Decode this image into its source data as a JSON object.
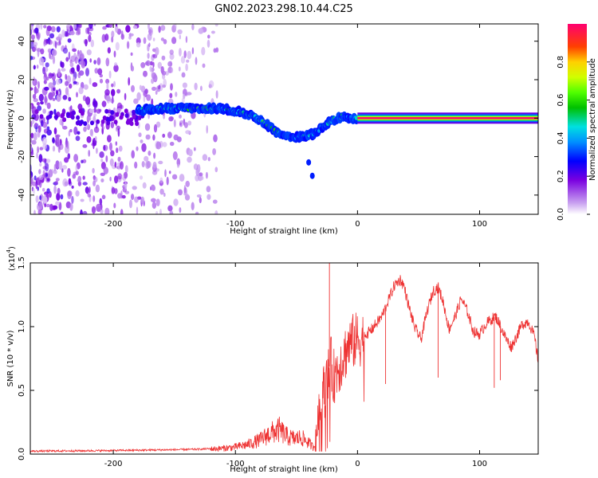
{
  "title": "GN02.2023.298.10.44.C25",
  "chart_data": [
    {
      "type": "heatmap",
      "xlabel": "Height of straight line (km)",
      "ylabel": "Frequency (Hz)",
      "xlim": [
        -268,
        148
      ],
      "ylim": [
        -50,
        49
      ],
      "xticks": [
        -200,
        -100,
        0,
        100
      ],
      "yticks": [
        -40,
        -20,
        0,
        20,
        40
      ],
      "colorbar": {
        "label": "Normalized spectral amplitude",
        "range": [
          0,
          1
        ],
        "ticks": [
          "0.0",
          "0.2",
          "0.4",
          "0.6",
          "0.8"
        ]
      },
      "ridge": {
        "x": [
          -180,
          -160,
          -140,
          -125,
          -110,
          -95,
          -85,
          -75,
          -65,
          -58,
          -50,
          -42,
          -35,
          -28,
          -20,
          -12,
          -5,
          0
        ],
        "y": [
          4,
          5,
          5,
          5,
          5,
          3,
          1,
          -3,
          -8,
          -9,
          -10,
          -9,
          -8,
          -4,
          -1,
          1,
          0,
          0
        ]
      },
      "tone": {
        "x_start": 0,
        "x_end": 148,
        "y": 0,
        "amplitude": 1.0
      },
      "noise_x_range": [
        -268,
        -115
      ],
      "grid": false,
      "legend": "none"
    },
    {
      "type": "line",
      "xlabel": "Height of straight line (km)",
      "ylabel": "SNR (10 * v/v)",
      "scale_label": "(x10",
      "scale_exponent": "4",
      "scale_close": ")",
      "xlim": [
        -268,
        148
      ],
      "ylim": [
        0,
        1.5
      ],
      "xticks": [
        -200,
        -100,
        0,
        100
      ],
      "yticks": [
        "0.0",
        "0.5",
        "1.0",
        "1.5"
      ],
      "color": "#ee3333",
      "envelope": {
        "x": [
          -268,
          -200,
          -160,
          -130,
          -110,
          -100,
          -90,
          -80,
          -72,
          -64,
          -58,
          -52,
          -46,
          -40,
          -36,
          -32,
          -30,
          -28,
          -26,
          -24,
          -22,
          -20,
          -18,
          -16,
          -14,
          -12,
          -10,
          -8,
          -5,
          0,
          5,
          10,
          15,
          20,
          25,
          30,
          35,
          38,
          42,
          47,
          52,
          57,
          62,
          66,
          70,
          75,
          80,
          85,
          90,
          95,
          100,
          105,
          110,
          113,
          116,
          119,
          122,
          126,
          130,
          135,
          140,
          145,
          148
        ],
        "y": [
          0.02,
          0.025,
          0.03,
          0.035,
          0.045,
          0.055,
          0.075,
          0.11,
          0.16,
          0.19,
          0.14,
          0.12,
          0.13,
          0.09,
          0.05,
          0.28,
          0.42,
          0.5,
          0.55,
          0.62,
          0.75,
          0.62,
          0.66,
          0.7,
          0.74,
          0.78,
          0.82,
          0.86,
          0.9,
          0.92,
          0.93,
          0.96,
          1.02,
          1.08,
          1.2,
          1.32,
          1.37,
          1.32,
          1.16,
          0.99,
          0.9,
          1.12,
          1.28,
          1.31,
          1.2,
          0.98,
          1.08,
          1.22,
          1.12,
          0.96,
          0.94,
          1.02,
          1.06,
          1.08,
          1.03,
          0.96,
          0.9,
          0.84,
          0.92,
          1.02,
          1.04,
          0.92,
          0.72
        ]
      },
      "spikes": [
        {
          "x": -23,
          "y": 1.5
        },
        {
          "x": 66,
          "y": 0.6
        },
        {
          "x": 112,
          "y": 0.52
        },
        {
          "x": 117,
          "y": 0.58
        },
        {
          "x": 23,
          "y": 0.55
        }
      ],
      "grid": false,
      "legend": "none"
    }
  ]
}
